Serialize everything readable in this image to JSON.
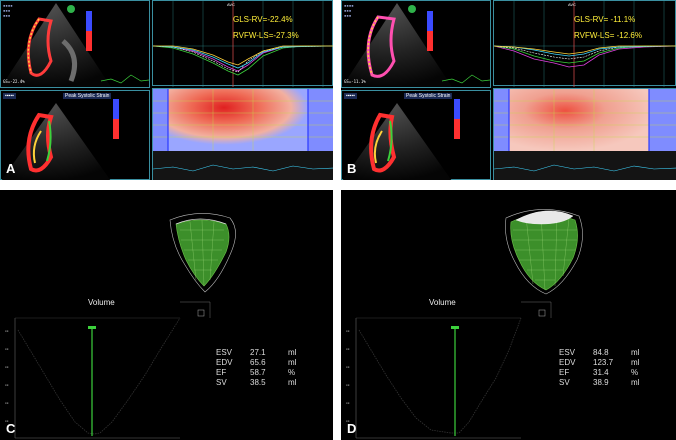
{
  "panels": {
    "A": {
      "label": "A",
      "gls_rv": "GLS-RV=-22.4%",
      "rvfw_ls": "RVFW-LS=-27.3%",
      "gs_text": "GS=-22.4%",
      "peak_label": "Peak Systolic Strain",
      "avc_label": "AVC"
    },
    "B": {
      "label": "B",
      "gls_rv": "GLS-RV= -11.1%",
      "rvfw_ls": "RVFW-LS= -12.6%",
      "gs_text": "GS=-11.1%",
      "peak_label": "Peak Systolic Strain",
      "avc_label": "AVC"
    },
    "C": {
      "label": "C",
      "volume_title": "Volume",
      "metrics": [
        {
          "key": "ESV",
          "value": "27.1",
          "unit": "ml"
        },
        {
          "key": "EDV",
          "value": "65.6",
          "unit": "ml"
        },
        {
          "key": "EF",
          "value": "58.7",
          "unit": "%"
        },
        {
          "key": "SV",
          "value": "38.5",
          "unit": "ml"
        }
      ]
    },
    "D": {
      "label": "D",
      "volume_title": "Volume",
      "metrics": [
        {
          "key": "ESV",
          "value": "84.8",
          "unit": "ml"
        },
        {
          "key": "EDV",
          "value": "123.7",
          "unit": "ml"
        },
        {
          "key": "EF",
          "value": "31.4",
          "unit": "%"
        },
        {
          "key": "SV",
          "value": "38.9",
          "unit": "ml"
        }
      ]
    }
  },
  "colors": {
    "frame": "#3a8fa0",
    "strain_text": "#ffef3a",
    "mesh_green": "#3c8f2a",
    "curve_green": "#3cd13c"
  }
}
